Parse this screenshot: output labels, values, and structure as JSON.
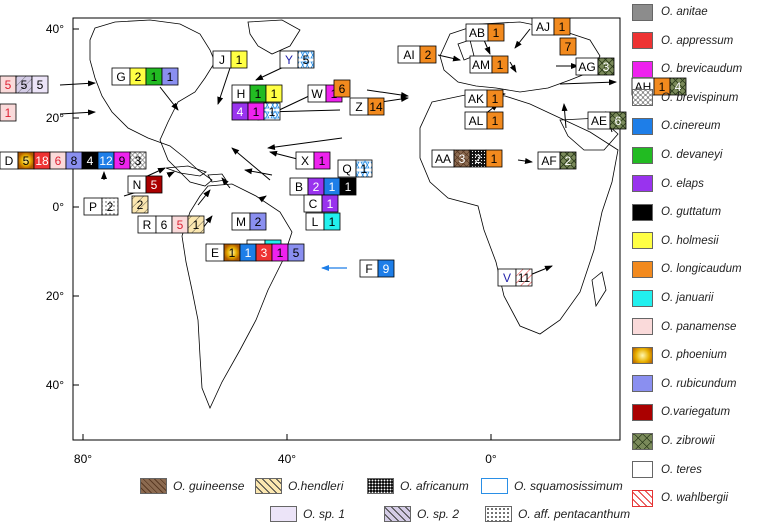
{
  "axes": {
    "y_ticks": [
      {
        "label": "40°",
        "lat": 40
      },
      {
        "label": "20°",
        "lat": 20
      },
      {
        "label": "0°",
        "lat": 0
      },
      {
        "label": "20°",
        "lat": -20
      },
      {
        "label": "40°",
        "lat": -40
      }
    ],
    "x_ticks": [
      {
        "label": "80°",
        "lon": -80
      },
      {
        "label": "40°",
        "lon": -40
      },
      {
        "label": "0°",
        "lon": 0
      }
    ]
  },
  "legend": [
    {
      "label": "O. anitae",
      "color": "#8c8c8c",
      "pattern": "solid"
    },
    {
      "label": "O. appressum",
      "color": "#ee3333",
      "pattern": "solid"
    },
    {
      "label": "O. brevicaudum",
      "color": "#ee22ee",
      "pattern": "solid"
    },
    {
      "label": "O. brevispinum",
      "color": "#ffffff",
      "pattern": "circles"
    },
    {
      "label": "O.cinereum",
      "color": "#1e7ee8",
      "pattern": "solid"
    },
    {
      "label": "O. devaneyi",
      "color": "#22bb22",
      "pattern": "solid"
    },
    {
      "label": "O. elaps",
      "color": "#9933ee",
      "pattern": "solid"
    },
    {
      "label": "O. guttatum",
      "color": "#000000",
      "pattern": "solid"
    },
    {
      "label": "O. holmesii",
      "color": "#ffff44",
      "pattern": "solid"
    },
    {
      "label": "O. longicaudum",
      "color": "#f28a1e",
      "pattern": "solid"
    },
    {
      "label": "O. januarii",
      "color": "#22f0ee",
      "pattern": "solid"
    },
    {
      "label": "O. panamense",
      "color": "#fadada",
      "pattern": "solid"
    },
    {
      "label": "O. phoenium",
      "color": "#d9a400",
      "pattern": "radial"
    },
    {
      "label": "O. rubicundum",
      "color": "#8a8ff0",
      "pattern": "solid"
    },
    {
      "label": "O.variegatum",
      "color": "#aa0000",
      "pattern": "solid"
    },
    {
      "label": "O. zibrowii",
      "color": "#7a8a5a",
      "pattern": "cross"
    },
    {
      "label": "O. teres",
      "color": "#ffffff",
      "pattern": "solid"
    },
    {
      "label": "O. wahlbergii",
      "color": "#ffffff",
      "pattern": "redhatch"
    }
  ],
  "bottom_legend": [
    {
      "label": "O. guineense",
      "color": "#8b6a50",
      "pattern": "brown"
    },
    {
      "label": "O.hendleri",
      "color": "#fbe7b0",
      "pattern": "hatch"
    },
    {
      "label": "O. africanum",
      "color": "#111111",
      "pattern": "dots-dark"
    },
    {
      "label": "O. squamosissimum",
      "color": "#ffffff",
      "pattern": "star"
    },
    {
      "label": "O. sp. 1",
      "color": "#ece4f8",
      "pattern": "solid"
    },
    {
      "label": "O. sp. 2",
      "color": "#d4cce6",
      "pattern": "hatch"
    },
    {
      "label": "O. aff. pentacanthum",
      "color": "#ffffff",
      "pattern": "dots"
    }
  ],
  "sites": [
    {
      "code": "G",
      "cells": [
        {
          "v": "2",
          "c": "#ffff44"
        },
        {
          "v": "1",
          "c": "#22bb22"
        },
        {
          "v": "1",
          "c": "#8a8ff0"
        }
      ]
    },
    {
      "code": "J",
      "cells": [
        {
          "v": "1",
          "c": "#ffff44"
        }
      ]
    },
    {
      "code": "Y",
      "cells": [
        {
          "v": "5",
          "c": "#ffffff",
          "p": "star"
        }
      ]
    },
    {
      "code": "H",
      "cells": [
        {
          "v": "1",
          "c": "#22bb22"
        },
        {
          "v": "1",
          "c": "#ffff44"
        }
      ]
    },
    {
      "code": "W",
      "cells": [
        {
          "v": "1",
          "c": "#ee22ee"
        }
      ]
    },
    {
      "code": "X",
      "cells": [
        {
          "v": "1",
          "c": "#ee22ee"
        }
      ]
    },
    {
      "code": "Q",
      "cells": [
        {
          "v": "1",
          "c": "#ffffff",
          "p": "star"
        }
      ]
    },
    {
      "code": "B",
      "cells": [
        {
          "v": "2",
          "c": "#9933ee"
        },
        {
          "v": "1",
          "c": "#1e7ee8"
        },
        {
          "v": "1",
          "c": "#000000"
        }
      ]
    },
    {
      "code": "C",
      "cells": [
        {
          "v": "1",
          "c": "#9933ee"
        }
      ]
    },
    {
      "code": "L",
      "cells": [
        {
          "v": "1",
          "c": "#22f0ee"
        }
      ]
    },
    {
      "code": "M",
      "cells": [
        {
          "v": "2",
          "c": "#8a8ff0"
        }
      ]
    },
    {
      "code": "K",
      "cells": [
        {
          "v": "1",
          "c": "#22f0ee"
        }
      ]
    },
    {
      "code": "D",
      "cells": [
        {
          "v": "5",
          "c": "#d9a400",
          "p": "radial"
        },
        {
          "v": "18",
          "c": "#ee3333"
        },
        {
          "v": "6",
          "c": "#fadada"
        },
        {
          "v": "8",
          "c": "#8a8ff0"
        },
        {
          "v": "4",
          "c": "#000000"
        },
        {
          "v": "12",
          "c": "#1e7ee8"
        },
        {
          "v": "9",
          "c": "#ee22ee"
        },
        {
          "v": "3",
          "c": "#ffffff",
          "p": "circles"
        }
      ]
    },
    {
      "code": "N",
      "cells": [
        {
          "v": "5",
          "c": "#aa0000"
        }
      ]
    },
    {
      "code": "P",
      "cells": [
        {
          "v": "2",
          "c": "#ffffff",
          "p": "dots"
        }
      ]
    },
    {
      "code": "R",
      "cells": [
        {
          "v": "6",
          "c": "#ffffff"
        },
        {
          "v": "5",
          "c": "#fadada"
        },
        {
          "v": "1",
          "c": "#fbe7b0",
          "p": "hatch"
        }
      ]
    },
    {
      "code": "E",
      "cells": [
        {
          "v": "1",
          "c": "#d9a400",
          "p": "radial"
        },
        {
          "v": "1",
          "c": "#1e7ee8"
        },
        {
          "v": "3",
          "c": "#ee3333"
        },
        {
          "v": "1",
          "c": "#ee22ee"
        },
        {
          "v": "5",
          "c": "#8a8ff0"
        }
      ]
    },
    {
      "code": "F",
      "cells": [
        {
          "v": "9",
          "c": "#1e7ee8"
        }
      ]
    },
    {
      "code": "Z",
      "cells": [
        {
          "v": "14",
          "c": "#f28a1e"
        }
      ]
    },
    {
      "code": "AI",
      "cells": [
        {
          "v": "2",
          "c": "#f28a1e"
        }
      ]
    },
    {
      "code": "AB",
      "cells": [
        {
          "v": "1",
          "c": "#f28a1e"
        }
      ]
    },
    {
      "code": "AJ",
      "cells": [
        {
          "v": "1",
          "c": "#f28a1e"
        }
      ]
    },
    {
      "code": "AM",
      "cells": [
        {
          "v": "1",
          "c": "#f28a1e"
        }
      ]
    },
    {
      "code": "AG",
      "cells": [
        {
          "v": "3",
          "c": "#7a8a5a",
          "p": "cross"
        }
      ]
    },
    {
      "code": "AH",
      "cells": [
        {
          "v": "1",
          "c": "#f28a1e"
        },
        {
          "v": "4",
          "c": "#7a8a5a",
          "p": "cross"
        }
      ]
    },
    {
      "code": "AK",
      "cells": [
        {
          "v": "1",
          "c": "#f28a1e"
        }
      ]
    },
    {
      "code": "AL",
      "cells": [
        {
          "v": "1",
          "c": "#f28a1e"
        }
      ]
    },
    {
      "code": "AF",
      "cells": [
        {
          "v": "2",
          "c": "#7a8a5a",
          "p": "cross"
        }
      ]
    },
    {
      "code": "AE",
      "cells": [
        {
          "v": "6",
          "c": "#7a8a5a",
          "p": "cross"
        }
      ]
    },
    {
      "code": "AA",
      "cells": [
        {
          "v": "3",
          "c": "#8b6a50",
          "p": "brown"
        },
        {
          "v": "2",
          "c": "#111111",
          "p": "dots-dark"
        },
        {
          "v": "1",
          "c": "#f28a1e"
        }
      ]
    },
    {
      "code": "V",
      "cells": [
        {
          "v": "11",
          "c": "#ffffff",
          "p": "redhatch"
        }
      ]
    }
  ],
  "unlabeled_boxes": [
    {
      "cells": [
        {
          "v": "5",
          "c": "#fadada"
        },
        {
          "v": "5",
          "c": "#d4cce6",
          "p": "hatch"
        },
        {
          "v": "5",
          "c": "#ece4f8"
        }
      ]
    },
    {
      "cells": [
        {
          "v": "1",
          "c": "#fadada"
        }
      ]
    },
    {
      "cells": [
        {
          "v": "4",
          "c": "#9933ee"
        },
        {
          "v": "1",
          "c": "#ee22ee"
        },
        {
          "v": "1",
          "c": "#ffffff",
          "p": "star"
        }
      ]
    },
    {
      "cells": [
        {
          "v": "2",
          "c": "#fbe7b0",
          "p": "hatch"
        }
      ]
    },
    {
      "cells": [
        {
          "v": "6",
          "c": "#f28a1e"
        }
      ]
    },
    {
      "cells": [
        {
          "v": "7",
          "c": "#f28a1e"
        }
      ]
    }
  ]
}
